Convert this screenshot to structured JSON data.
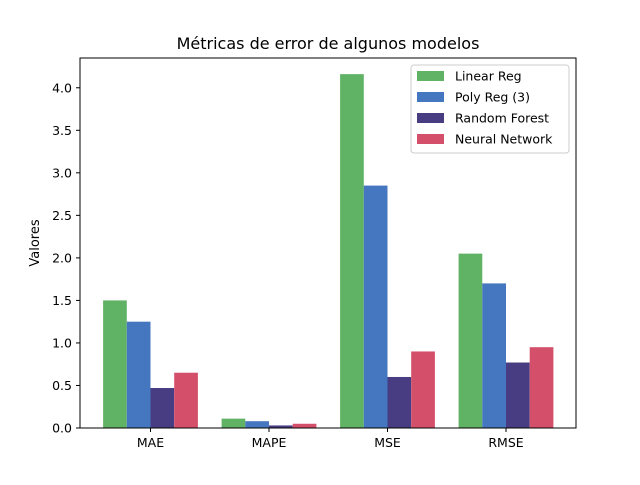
{
  "chart_data": {
    "type": "bar",
    "title": "Métricas de error de algunos modelos",
    "xlabel": "",
    "ylabel": "Valores",
    "categories": [
      "MAE",
      "MAPE",
      "MSE",
      "RMSE"
    ],
    "ylim": [
      0,
      4.35
    ],
    "yticks": [
      0.0,
      0.5,
      1.0,
      1.5,
      2.0,
      2.5,
      3.0,
      3.5,
      4.0
    ],
    "ytick_labels": [
      "0.0",
      "0.5",
      "1.0",
      "1.5",
      "2.0",
      "2.5",
      "3.0",
      "3.5",
      "4.0"
    ],
    "grid": false,
    "legend_position": "top-right",
    "series": [
      {
        "name": "Linear Reg",
        "color": "#60b265",
        "values": [
          1.5,
          0.11,
          4.16,
          2.05
        ]
      },
      {
        "name": "Poly Reg (3)",
        "color": "#4477bf",
        "values": [
          1.25,
          0.08,
          2.85,
          1.7
        ]
      },
      {
        "name": "Random Forest",
        "color": "#483d83",
        "values": [
          0.47,
          0.03,
          0.6,
          0.77
        ]
      },
      {
        "name": "Neural Network",
        "color": "#d4506a",
        "values": [
          0.65,
          0.05,
          0.9,
          0.95
        ]
      }
    ]
  }
}
